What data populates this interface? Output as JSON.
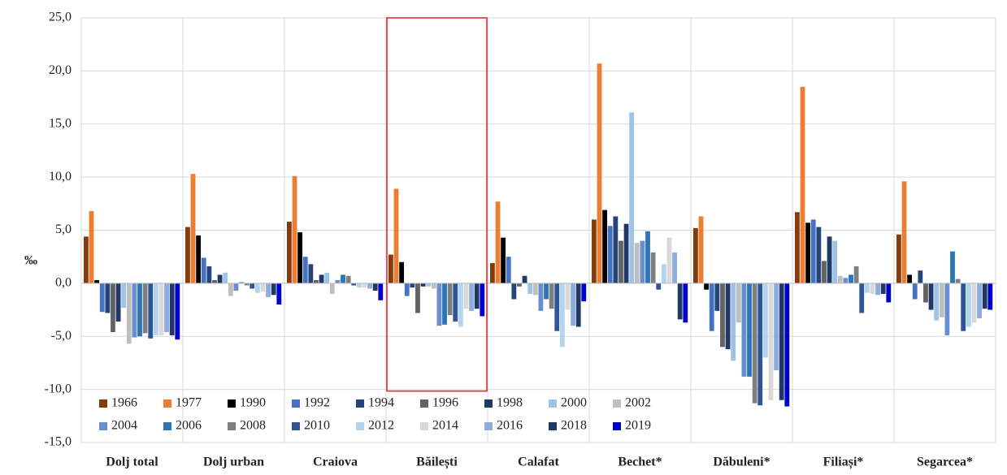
{
  "chart_data": {
    "type": "bar",
    "y_label": "‰",
    "categories": [
      "Dolj total",
      "Dolj urban",
      "Craiova",
      "Băilești",
      "Calafat",
      "Bechet*",
      "Dăbuleni*",
      "Filiași*",
      "Segarcea*"
    ],
    "ylim": [
      -15,
      25
    ],
    "yticks": [
      {
        "value": -15,
        "label": "-15,0"
      },
      {
        "value": -10,
        "label": "-10,0"
      },
      {
        "value": -5,
        "label": "-5,0"
      },
      {
        "value": 0,
        "label": "0,0"
      },
      {
        "value": 5,
        "label": "5,0"
      },
      {
        "value": 10,
        "label": "10,0"
      },
      {
        "value": 15,
        "label": "15,0"
      },
      {
        "value": 20,
        "label": "20,0"
      },
      {
        "value": 25,
        "label": "25,0"
      }
    ],
    "grid": true,
    "series": [
      {
        "name": "1966",
        "color": "#843c0c",
        "values": [
          4.4,
          5.3,
          5.8,
          2.7,
          1.9,
          6.0,
          5.2,
          6.7,
          4.6
        ]
      },
      {
        "name": "1977",
        "color": "#ed7d31",
        "values": [
          6.8,
          10.3,
          10.1,
          8.9,
          7.7,
          20.7,
          6.3,
          18.5,
          9.6
        ]
      },
      {
        "name": "1990",
        "color": "#000000",
        "values": [
          0.3,
          4.5,
          4.8,
          2.0,
          4.3,
          6.9,
          -0.6,
          5.7,
          0.8
        ]
      },
      {
        "name": "1992",
        "color": "#4472c4",
        "values": [
          -2.7,
          2.4,
          2.5,
          -1.2,
          2.5,
          5.4,
          -4.5,
          6.0,
          -1.5
        ]
      },
      {
        "name": "1994",
        "color": "#264478",
        "values": [
          -2.8,
          1.6,
          1.8,
          -0.4,
          -1.5,
          6.3,
          -2.6,
          5.3,
          1.2
        ]
      },
      {
        "name": "1996",
        "color": "#636363",
        "values": [
          -4.6,
          0.3,
          0.3,
          -2.8,
          -0.3,
          4.0,
          -6.0,
          2.1,
          -1.8
        ]
      },
      {
        "name": "1998",
        "color": "#1f3864",
        "values": [
          -3.6,
          0.8,
          0.8,
          -0.3,
          0.7,
          5.6,
          -6.2,
          4.4,
          -2.5
        ]
      },
      {
        "name": "2000",
        "color": "#9dc3e6",
        "values": [
          -2.3,
          1.0,
          1.0,
          -0.3,
          -1.0,
          16.1,
          -7.3,
          4.0,
          -3.5
        ]
      },
      {
        "name": "2002",
        "color": "#bfbfbf",
        "values": [
          -5.7,
          -1.2,
          -1.0,
          -0.5,
          -1.1,
          3.8,
          -3.7,
          0.7,
          -3.2
        ]
      },
      {
        "name": "2004",
        "color": "#698ed0",
        "values": [
          -5.1,
          -0.7,
          0.3,
          -4.0,
          -2.6,
          4.0,
          -8.8,
          0.5,
          -4.9
        ]
      },
      {
        "name": "2006",
        "color": "#2e75b6",
        "values": [
          -5.0,
          0.1,
          0.8,
          -3.9,
          -1.5,
          4.9,
          -8.8,
          0.8,
          3.0
        ]
      },
      {
        "name": "2008",
        "color": "#7f7f7f",
        "values": [
          -4.7,
          -0.2,
          0.7,
          -3.0,
          -2.4,
          2.9,
          -11.3,
          1.6,
          0.4
        ]
      },
      {
        "name": "2010",
        "color": "#2f5597",
        "values": [
          -5.2,
          -0.5,
          -0.2,
          -3.6,
          -4.5,
          -0.6,
          -11.5,
          -2.8,
          -4.5
        ]
      },
      {
        "name": "2012",
        "color": "#b4d3f0",
        "values": [
          -4.9,
          -0.9,
          -0.4,
          -4.1,
          -6.0,
          1.8,
          -7.0,
          -0.9,
          -4.1
        ]
      },
      {
        "name": "2014",
        "color": "#d9d9d9",
        "values": [
          -4.9,
          -0.8,
          -0.4,
          -2.4,
          -2.5,
          4.3,
          -11.0,
          -1.0,
          -3.7
        ]
      },
      {
        "name": "2016",
        "color": "#8faadc",
        "values": [
          -4.6,
          -1.3,
          -0.5,
          -2.6,
          -4.0,
          2.9,
          -8.2,
          -1.1,
          -3.3
        ]
      },
      {
        "name": "2018",
        "color": "#203864",
        "values": [
          -4.9,
          -1.1,
          -0.7,
          -2.4,
          -4.1,
          -3.4,
          -11.0,
          -1.0,
          -2.4
        ]
      },
      {
        "name": "2019",
        "color": "#0000cc",
        "values": [
          -5.3,
          -2.0,
          -1.6,
          -3.1,
          -1.7,
          -3.7,
          -11.6,
          -1.8,
          -2.5
        ]
      }
    ]
  }
}
